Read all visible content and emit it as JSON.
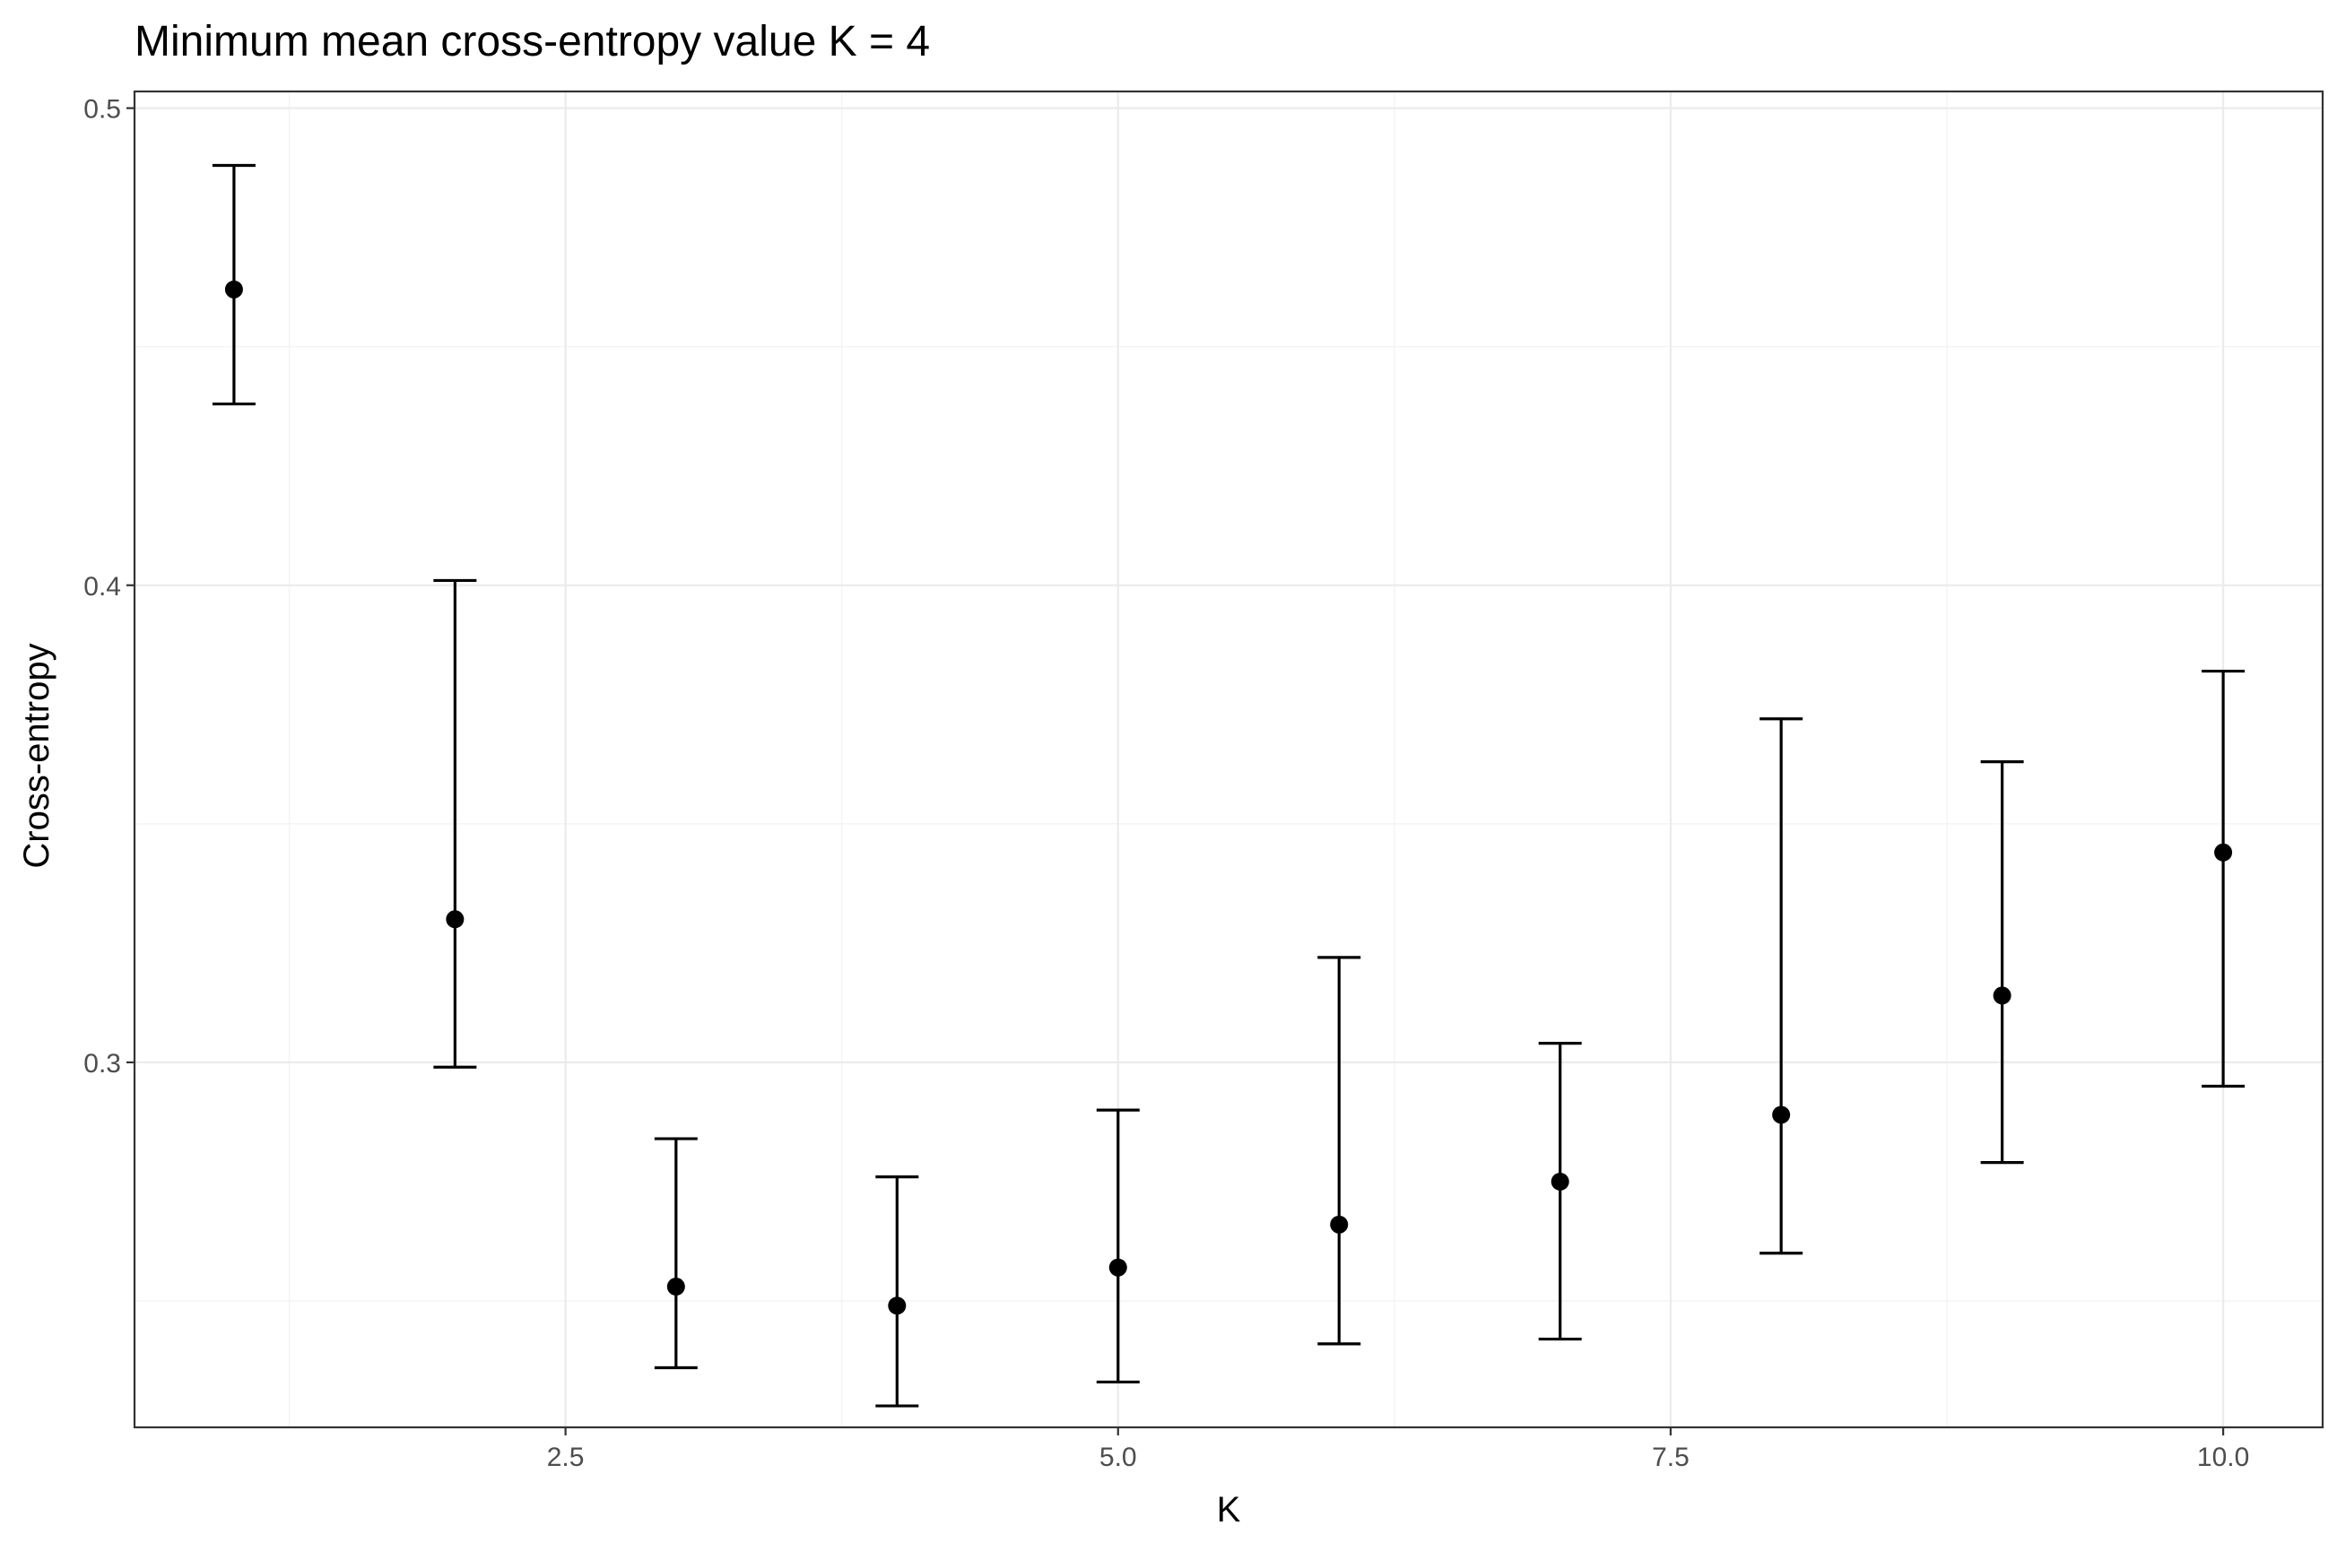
{
  "chart_data": {
    "type": "scatter",
    "title": "Minimum mean cross-entropy value K = 4",
    "xlabel": "K",
    "ylabel": "Cross-entropy",
    "xlim": [
      0.55,
      10.45
    ],
    "ylim": [
      0.2235,
      0.5035
    ],
    "x_ticks": [
      2.5,
      5.0,
      7.5,
      10.0
    ],
    "x_tick_labels": [
      "2.5",
      "5.0",
      "7.5",
      "10.0"
    ],
    "y_ticks": [
      0.3,
      0.4,
      0.5
    ],
    "y_tick_labels": [
      "0.3",
      "0.4",
      "0.5"
    ],
    "grid": true,
    "legend": "none",
    "series": [
      {
        "x": [
          1,
          2,
          3,
          4,
          5,
          6,
          7,
          8,
          9,
          10
        ],
        "y": [
          0.462,
          0.33,
          0.253,
          0.249,
          0.257,
          0.266,
          0.275,
          0.289,
          0.314,
          0.344
        ],
        "ymin": [
          0.438,
          0.299,
          0.236,
          0.228,
          0.233,
          0.241,
          0.242,
          0.26,
          0.279,
          0.295
        ],
        "ymax": [
          0.488,
          0.401,
          0.284,
          0.276,
          0.29,
          0.322,
          0.304,
          0.372,
          0.363,
          0.382
        ]
      }
    ],
    "colors": {
      "points": "#000000",
      "grid": "#ebebeb",
      "panel_border": "#333333",
      "tick_text": "#4d4d4d"
    }
  }
}
